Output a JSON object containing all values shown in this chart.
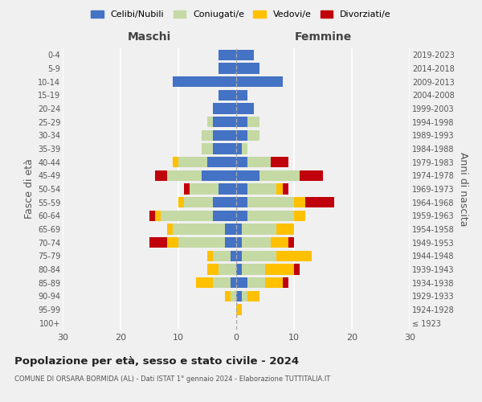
{
  "age_groups": [
    "100+",
    "95-99",
    "90-94",
    "85-89",
    "80-84",
    "75-79",
    "70-74",
    "65-69",
    "60-64",
    "55-59",
    "50-54",
    "45-49",
    "40-44",
    "35-39",
    "30-34",
    "25-29",
    "20-24",
    "15-19",
    "10-14",
    "5-9",
    "0-4"
  ],
  "birth_years": [
    "≤ 1923",
    "1924-1928",
    "1929-1933",
    "1934-1938",
    "1939-1943",
    "1944-1948",
    "1949-1953",
    "1954-1958",
    "1959-1963",
    "1964-1968",
    "1969-1973",
    "1974-1978",
    "1979-1983",
    "1984-1988",
    "1989-1993",
    "1994-1998",
    "1999-2003",
    "2004-2008",
    "2009-2013",
    "2014-2018",
    "2019-2023"
  ],
  "male_celibi": [
    0,
    0,
    0,
    1,
    0,
    1,
    2,
    2,
    4,
    4,
    3,
    6,
    5,
    4,
    4,
    4,
    4,
    3,
    11,
    3,
    3
  ],
  "male_coniugati": [
    0,
    0,
    1,
    3,
    3,
    3,
    8,
    9,
    9,
    5,
    5,
    6,
    5,
    2,
    2,
    1,
    0,
    0,
    0,
    0,
    0
  ],
  "male_vedovi": [
    0,
    0,
    1,
    3,
    2,
    1,
    2,
    1,
    1,
    1,
    0,
    0,
    1,
    0,
    0,
    0,
    0,
    0,
    0,
    0,
    0
  ],
  "male_divorziati": [
    0,
    0,
    0,
    0,
    0,
    0,
    3,
    0,
    1,
    0,
    1,
    2,
    0,
    0,
    0,
    0,
    0,
    0,
    0,
    0,
    0
  ],
  "female_celibi": [
    0,
    0,
    1,
    2,
    1,
    1,
    1,
    1,
    2,
    2,
    2,
    4,
    2,
    1,
    2,
    2,
    3,
    2,
    8,
    4,
    3
  ],
  "female_coniugati": [
    0,
    0,
    1,
    3,
    4,
    6,
    5,
    6,
    8,
    8,
    5,
    7,
    4,
    1,
    2,
    2,
    0,
    0,
    0,
    0,
    0
  ],
  "female_vedovi": [
    0,
    1,
    2,
    3,
    5,
    6,
    3,
    3,
    2,
    2,
    1,
    0,
    0,
    0,
    0,
    0,
    0,
    0,
    0,
    0,
    0
  ],
  "female_divorziati": [
    0,
    0,
    0,
    1,
    1,
    0,
    1,
    0,
    0,
    5,
    1,
    4,
    3,
    0,
    0,
    0,
    0,
    0,
    0,
    0,
    0
  ],
  "color_celibi": "#4472c4",
  "color_coniugati": "#c5d9a4",
  "color_vedovi": "#ffc000",
  "color_divorziati": "#c0000b",
  "xlim": 30,
  "title": "Popolazione per età, sesso e stato civile - 2024",
  "subtitle": "COMUNE DI ORSARA BORMIDA (AL) - Dati ISTAT 1° gennaio 2024 - Elaborazione TUTTITALIA.IT",
  "ylabel_left": "Fasce di età",
  "ylabel_right": "Anni di nascita",
  "xlabel_male": "Maschi",
  "xlabel_female": "Femmine",
  "bg_color": "#f0f0f0",
  "legend_labels": [
    "Celibi/Nubili",
    "Coniugati/e",
    "Vedovi/e",
    "Divorziati/e"
  ]
}
